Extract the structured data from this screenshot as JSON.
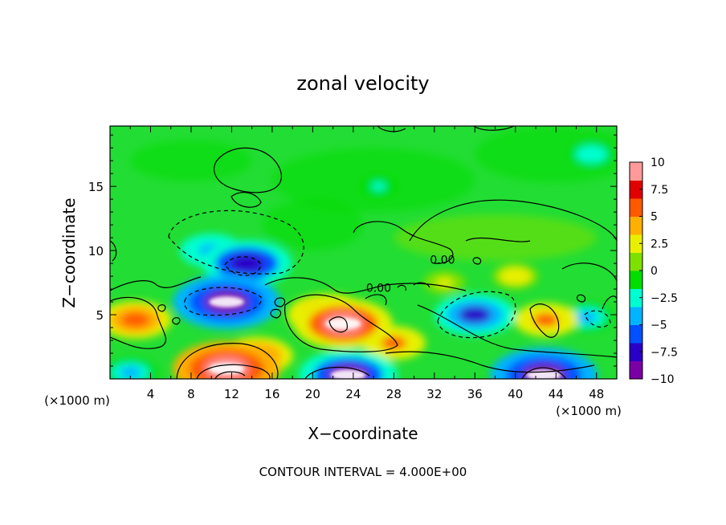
{
  "chart_data": {
    "type": "heatmap",
    "title": "zonal velocity",
    "xlabel": "X−coordinate",
    "ylabel": "Z−coordinate",
    "x_unit_left": "(×1000 m)",
    "x_unit_right": "(×1000 m)",
    "footer": "CONTOUR INTERVAL = 4.000E+00",
    "xlim": [
      0,
      50
    ],
    "ylim": [
      0,
      19.7
    ],
    "xticks": [
      4,
      8,
      12,
      16,
      20,
      24,
      28,
      32,
      36,
      40,
      44,
      48
    ],
    "xtick_labels": [
      "4",
      "8",
      "12",
      "16",
      "20",
      "24",
      "28",
      "32",
      "36",
      "40",
      "44",
      "48"
    ],
    "yticks": [
      5,
      10,
      15
    ],
    "ytick_labels": [
      "5",
      "10",
      "15"
    ],
    "colorbar": {
      "range": [
        -10,
        10
      ],
      "ticks": [
        10,
        7.5,
        5,
        2.5,
        0,
        -2.5,
        -5,
        -7.5,
        -10
      ],
      "tick_labels": [
        "10",
        "7.5",
        "5",
        "2.5",
        "0",
        "−2.5",
        "−5",
        "−7.5",
        "−10"
      ],
      "colors": [
        "#7a00a6",
        "#2a00c8",
        "#0050ff",
        "#00b4ff",
        "#00ffd0",
        "#00dd00",
        "#7ee000",
        "#e8f000",
        "#ffb000",
        "#ff5a00",
        "#e00000",
        "#ff9a9a"
      ]
    },
    "contour_labels": [
      {
        "text": "0.00",
        "x": 32.8,
        "y": 9.3
      },
      {
        "text": "0.00",
        "x": 26.5,
        "y": 7.1
      }
    ],
    "features": [
      {
        "kind": "negative",
        "x": 11.5,
        "y": 6.0,
        "value": -10
      },
      {
        "kind": "negative",
        "x": 13.5,
        "y": 9.0,
        "value": -8
      },
      {
        "kind": "negative",
        "x": 10.0,
        "y": 10.0,
        "value": -5
      },
      {
        "kind": "positive",
        "x": 23.0,
        "y": 4.3,
        "value": 9
      },
      {
        "kind": "positive",
        "x": 21.5,
        "y": 5.0,
        "value": 7
      },
      {
        "kind": "positive",
        "x": 2.5,
        "y": 4.6,
        "value": 6
      },
      {
        "kind": "positive",
        "x": 11.5,
        "y": 0.8,
        "value": 10
      },
      {
        "kind": "positive",
        "x": 14.5,
        "y": 1.8,
        "value": 6
      },
      {
        "kind": "negative",
        "x": 23.5,
        "y": 0.3,
        "value": -9
      },
      {
        "kind": "negative",
        "x": 36.0,
        "y": 5.0,
        "value": -7
      },
      {
        "kind": "negative",
        "x": 42.8,
        "y": 0.3,
        "value": -10
      },
      {
        "kind": "positive",
        "x": 43.0,
        "y": 4.6,
        "value": 5
      },
      {
        "kind": "positive",
        "x": 28.0,
        "y": 2.8,
        "value": 5
      },
      {
        "kind": "negative",
        "x": 47.0,
        "y": 4.8,
        "value": -4
      },
      {
        "kind": "negative",
        "x": 2.0,
        "y": 0.5,
        "value": -4
      },
      {
        "kind": "positive",
        "x": 33.0,
        "y": 7.5,
        "value": 2.5
      },
      {
        "kind": "positive",
        "x": 40.0,
        "y": 8.0,
        "value": 3
      },
      {
        "kind": "negative",
        "x": 47.5,
        "y": 17.5,
        "value": -3
      },
      {
        "kind": "negative",
        "x": 26.5,
        "y": 15.0,
        "value": -2
      }
    ]
  }
}
